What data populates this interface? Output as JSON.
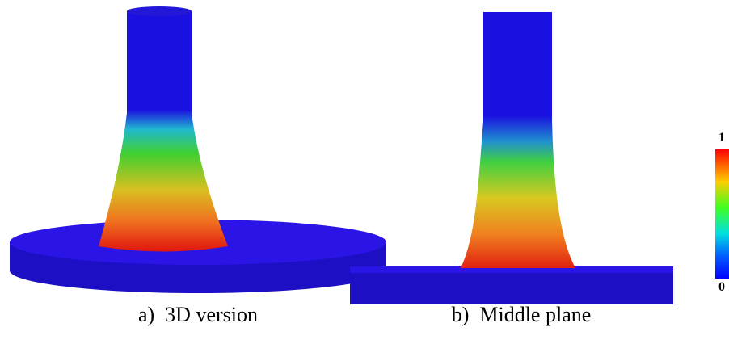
{
  "panels": [
    {
      "caption": "a)  3D version"
    },
    {
      "caption": "b)  Middle plane"
    }
  ],
  "colorbar": {
    "max_label": 1,
    "min_label": 0
  }
}
